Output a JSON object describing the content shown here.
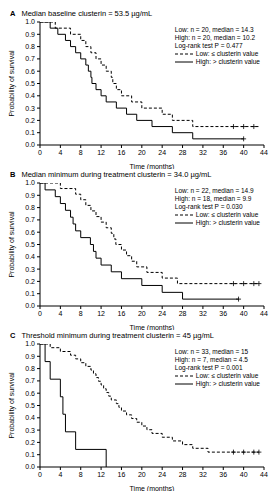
{
  "chart_data": [
    {
      "type": "line",
      "panel": "A",
      "title": "Median baseline clusterin = 53.5 µg/mL",
      "annotations": [
        "Low: n = 20, median = 14.3",
        "High: n = 20, median = 10.2",
        "Log-rank test P = 0.477"
      ],
      "x_label": "Time (months)",
      "y_label": "Probability of survival",
      "xlim": [
        0,
        44
      ],
      "xticks": [
        0,
        4,
        8,
        12,
        16,
        20,
        24,
        28,
        32,
        36,
        40,
        44
      ],
      "ylim": [
        0,
        1
      ],
      "yticks": [
        {
          "value": 0,
          "label": "0.0"
        },
        {
          "value": 0.1,
          "label": "0.1"
        },
        {
          "value": 0.2,
          "label": "0.2"
        },
        {
          "value": 0.3,
          "label": "0.3"
        },
        {
          "value": 0.4,
          "label": "0.4"
        },
        {
          "value": 0.5,
          "label": "0.5"
        },
        {
          "value": 0.6,
          "label": "0.6"
        },
        {
          "value": 0.7,
          "label": "0.7"
        },
        {
          "value": 0.8,
          "label": "0.8"
        },
        {
          "value": 0.9,
          "label": "0.9"
        },
        {
          "value": 1,
          "label": "1.0"
        }
      ],
      "series": [
        {
          "name": "Low: ≤ clusterin value",
          "color": "#000000",
          "line_style": "dashed",
          "marker": "+",
          "x": [
            0,
            3,
            6,
            8,
            9,
            10,
            11,
            12,
            13,
            14,
            14.3,
            15,
            16,
            18,
            20,
            24,
            26,
            30,
            43
          ],
          "values": [
            1,
            0.95,
            0.9,
            0.85,
            0.8,
            0.75,
            0.7,
            0.65,
            0.6,
            0.55,
            0.5,
            0.45,
            0.4,
            0.35,
            0.3,
            0.25,
            0.2,
            0.15,
            0.15
          ],
          "censored": [
            38,
            40,
            42
          ]
        },
        {
          "name": "High: > clusterin value",
          "color": "#000000",
          "line_style": "solid",
          "marker": "+",
          "x": [
            0,
            2,
            3.5,
            5,
            6,
            7,
            8,
            9,
            9.5,
            10,
            10.2,
            11,
            12,
            13,
            15,
            17,
            19,
            22,
            26,
            30,
            40
          ],
          "values": [
            1,
            0.95,
            0.9,
            0.85,
            0.8,
            0.75,
            0.7,
            0.65,
            0.6,
            0.55,
            0.5,
            0.45,
            0.4,
            0.35,
            0.3,
            0.25,
            0.2,
            0.15,
            0.1,
            0.05,
            0.05
          ],
          "censored": [
            40
          ]
        }
      ]
    },
    {
      "type": "line",
      "panel": "B",
      "title": "Median minimum during treatment clusterin = 34.0 µg/mL",
      "annotations": [
        "Low: n = 22, median = 14.9",
        "High: n = 18, median = 9.9",
        "Log-rank test P = 0.030"
      ],
      "x_label": "Time (months)",
      "y_label": "Probability of survival",
      "xlim": [
        0,
        44
      ],
      "xticks": [
        0,
        4,
        8,
        12,
        16,
        20,
        24,
        28,
        32,
        36,
        40,
        44
      ],
      "ylim": [
        0,
        1
      ],
      "yticks": [
        {
          "value": 0,
          "label": "0.0"
        },
        {
          "value": 0.1,
          "label": "0.1"
        },
        {
          "value": 0.2,
          "label": "0.2"
        },
        {
          "value": 0.3,
          "label": "0.3"
        },
        {
          "value": 0.4,
          "label": "0.4"
        },
        {
          "value": 0.5,
          "label": "0.5"
        },
        {
          "value": 0.6,
          "label": "0.6"
        },
        {
          "value": 0.7,
          "label": "0.7"
        },
        {
          "value": 0.8,
          "label": "0.8"
        },
        {
          "value": 0.9,
          "label": "0.9"
        },
        {
          "value": 1,
          "label": "1.0"
        }
      ],
      "series": [
        {
          "name": "Low: ≤ clusterin value",
          "color": "#000000",
          "line_style": "dashed",
          "marker": "+",
          "x": [
            0,
            4,
            7,
            8,
            9,
            10,
            11,
            12,
            13,
            14,
            14.5,
            14.9,
            16,
            17,
            18,
            19,
            21,
            24,
            27,
            43
          ],
          "values": [
            1,
            0.955,
            0.909,
            0.864,
            0.818,
            0.773,
            0.727,
            0.682,
            0.636,
            0.591,
            0.545,
            0.5,
            0.455,
            0.409,
            0.364,
            0.318,
            0.273,
            0.227,
            0.182,
            0.182
          ],
          "censored": [
            38,
            40,
            42,
            43
          ]
        },
        {
          "name": "High: > clusterin value",
          "color": "#000000",
          "line_style": "solid",
          "marker": "+",
          "x": [
            0,
            1,
            3,
            4,
            5,
            6,
            6.5,
            7,
            8,
            9.9,
            10.5,
            11,
            12,
            14,
            16,
            20,
            24,
            28,
            39
          ],
          "values": [
            1,
            0.944,
            0.889,
            0.833,
            0.778,
            0.722,
            0.667,
            0.611,
            0.556,
            0.5,
            0.444,
            0.389,
            0.333,
            0.278,
            0.222,
            0.167,
            0.111,
            0.056,
            0.056
          ],
          "censored": [
            39
          ]
        }
      ]
    },
    {
      "type": "line",
      "panel": "C",
      "title": "Threshold minimum during treatment clusterin = 45 µg/mL",
      "annotations": [
        "Low: n = 33, median = 15",
        "High: n = 7, median = 4.5",
        "Log-rank test P = 0.001"
      ],
      "x_label": "Time (months)",
      "y_label": "Probability of survival",
      "xlim": [
        0,
        44
      ],
      "xticks": [
        0,
        4,
        8,
        12,
        16,
        20,
        24,
        28,
        32,
        36,
        40,
        44
      ],
      "ylim": [
        0,
        1
      ],
      "yticks": [
        {
          "value": 0,
          "label": "0.0"
        },
        {
          "value": 0.1,
          "label": "0.1"
        },
        {
          "value": 0.2,
          "label": "0.2"
        },
        {
          "value": 0.3,
          "label": "0.3"
        },
        {
          "value": 0.4,
          "label": "0.4"
        },
        {
          "value": 0.5,
          "label": "0.5"
        },
        {
          "value": 0.6,
          "label": "0.6"
        },
        {
          "value": 0.7,
          "label": "0.7"
        },
        {
          "value": 0.8,
          "label": "0.8"
        },
        {
          "value": 0.9,
          "label": "0.9"
        },
        {
          "value": 1,
          "label": "1.0"
        }
      ],
      "series": [
        {
          "name": "Low: ≤ clusterin value",
          "color": "#000000",
          "line_style": "dashed",
          "marker": "+",
          "x": [
            0,
            2,
            4,
            6,
            7,
            8,
            9,
            10,
            10.5,
            11,
            11.5,
            12,
            12.5,
            13,
            13.5,
            14,
            15,
            15.5,
            16,
            17,
            18,
            19,
            20,
            21,
            22,
            24,
            26,
            28,
            30,
            33,
            43
          ],
          "values": [
            1,
            0.97,
            0.939,
            0.909,
            0.879,
            0.848,
            0.818,
            0.788,
            0.758,
            0.727,
            0.697,
            0.667,
            0.636,
            0.606,
            0.576,
            0.545,
            0.515,
            0.485,
            0.455,
            0.424,
            0.394,
            0.364,
            0.333,
            0.303,
            0.273,
            0.242,
            0.212,
            0.182,
            0.152,
            0.121,
            0.121
          ],
          "censored": [
            38,
            40,
            42,
            43
          ]
        },
        {
          "name": "High: > clusterin value",
          "color": "#000000",
          "line_style": "solid",
          "marker": "+",
          "x": [
            0,
            1,
            2,
            4,
            4.5,
            5,
            7,
            13
          ],
          "values": [
            1,
            0.857,
            0.714,
            0.571,
            0.429,
            0.286,
            0.143,
            0
          ],
          "censored": []
        }
      ]
    }
  ]
}
